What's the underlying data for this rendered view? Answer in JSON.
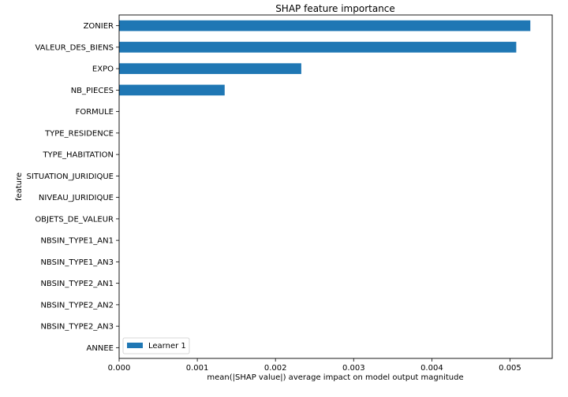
{
  "chart_data": {
    "type": "bar",
    "orientation": "horizontal",
    "title": "SHAP feature importance",
    "xlabel": "mean(|SHAP value|) average impact on model output magnitude",
    "ylabel": "feature",
    "categories": [
      "ZONIER",
      "VALEUR_DES_BIENS",
      "EXPO",
      "NB_PIECES",
      "FORMULE",
      "TYPE_RESIDENCE",
      "TYPE_HABITATION",
      "SITUATION_JURIDIQUE",
      "NIVEAU_JURIDIQUE",
      "OBJETS_DE_VALEUR",
      "NBSIN_TYPE1_AN1",
      "NBSIN_TYPE1_AN3",
      "NBSIN_TYPE2_AN1",
      "NBSIN_TYPE2_AN2",
      "NBSIN_TYPE2_AN3",
      "ANNEE"
    ],
    "series": [
      {
        "name": "Learner 1",
        "color": "#1f77b4",
        "values": [
          0.00526,
          0.00508,
          0.00233,
          0.00135,
          0,
          0,
          0,
          0,
          0,
          0,
          0,
          0,
          0,
          0,
          0,
          0
        ]
      }
    ],
    "xlim": [
      0,
      0.00554
    ],
    "xticks": [
      0,
      0.001,
      0.002,
      0.003,
      0.004,
      0.005
    ],
    "xtick_labels": [
      "0.000",
      "0.001",
      "0.002",
      "0.003",
      "0.004",
      "0.005"
    ],
    "grid": false,
    "legend": "lower-left"
  }
}
